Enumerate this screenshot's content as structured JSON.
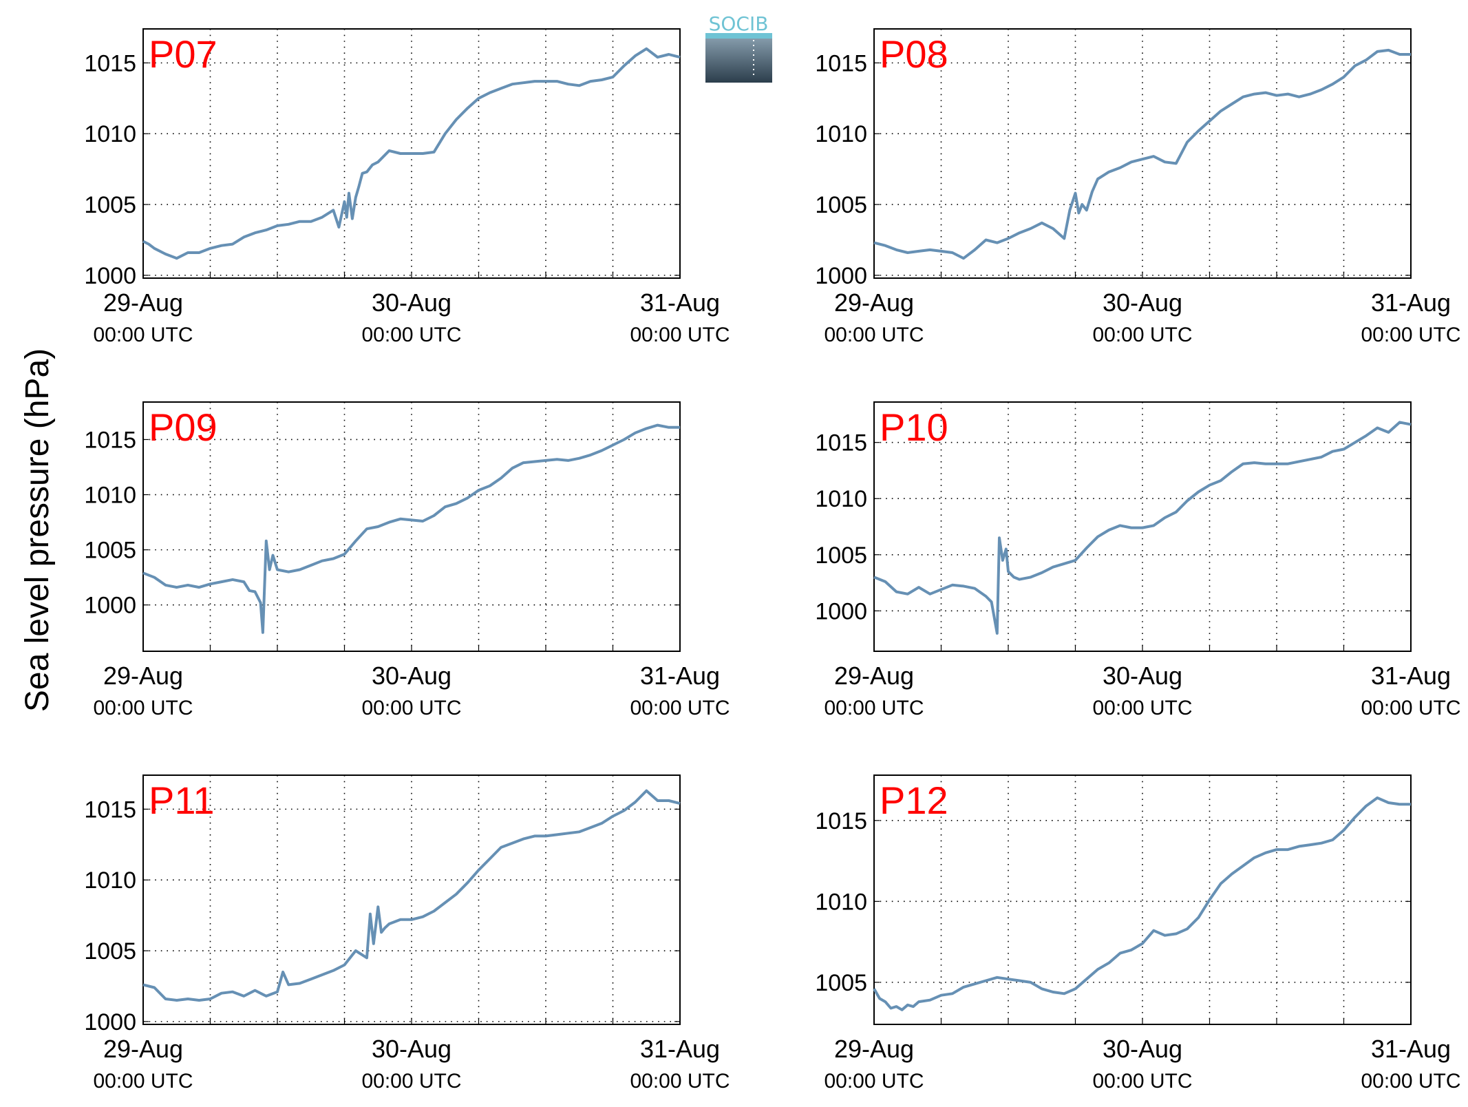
{
  "figure": {
    "ylabel": "Sea level pressure (hPa)",
    "logo_text": "SOCIB",
    "line_color": "#6690b4",
    "label_color": "#ff0000"
  },
  "chart_data": [
    {
      "type": "line",
      "title": "P07",
      "xlim": [
        0,
        48
      ],
      "ylim": [
        999.8,
        1017.4
      ],
      "yticks": [
        1000,
        1005,
        1010,
        1015
      ],
      "xticks": [
        0,
        24,
        48
      ],
      "xticklabels": [
        [
          "29-Aug",
          "00:00 UTC"
        ],
        [
          "30-Aug",
          "00:00 UTC"
        ],
        [
          "31-Aug",
          "00:00 UTC"
        ]
      ],
      "grid": true,
      "x": [
        0,
        0.5,
        1,
        2,
        3,
        4,
        5,
        6,
        7,
        8,
        9,
        10,
        11,
        12,
        13,
        14,
        15,
        16,
        17,
        17.5,
        18,
        18.2,
        18.4,
        18.7,
        19,
        19.3,
        19.6,
        20,
        20.5,
        21,
        22,
        23,
        24,
        25,
        26,
        27,
        28,
        29,
        30,
        31,
        32,
        33,
        34,
        35,
        36,
        37,
        38,
        39,
        40,
        41,
        42,
        43,
        44,
        45,
        46,
        47,
        47.5,
        48
      ],
      "y": [
        1002.4,
        1002.2,
        1001.9,
        1001.5,
        1001.2,
        1001.6,
        1001.6,
        1001.9,
        1002.1,
        1002.2,
        1002.7,
        1003,
        1003.2,
        1003.5,
        1003.6,
        1003.8,
        1003.8,
        1004.1,
        1004.6,
        1003.4,
        1005.2,
        1004.1,
        1005.8,
        1004.0,
        1005.5,
        1006.3,
        1007.2,
        1007.3,
        1007.8,
        1008.0,
        1008.8,
        1008.6,
        1008.6,
        1008.6,
        1008.7,
        1010.0,
        1011.0,
        1011.8,
        1012.5,
        1012.9,
        1013.2,
        1013.5,
        1013.6,
        1013.7,
        1013.7,
        1013.7,
        1013.5,
        1013.4,
        1013.7,
        1013.8,
        1014.0,
        1014.8,
        1015.5,
        1016.0,
        1015.4,
        1015.6,
        1015.5,
        1015.4
      ]
    },
    {
      "type": "line",
      "title": "P08",
      "xlim": [
        0,
        48
      ],
      "ylim": [
        999.8,
        1017.4
      ],
      "yticks": [
        1000,
        1005,
        1010,
        1015
      ],
      "xticks": [
        0,
        24,
        48
      ],
      "xticklabels": [
        [
          "29-Aug",
          "00:00 UTC"
        ],
        [
          "30-Aug",
          "00:00 UTC"
        ],
        [
          "31-Aug",
          "00:00 UTC"
        ]
      ],
      "grid": true,
      "x": [
        0,
        1,
        2,
        3,
        4,
        5,
        6,
        7,
        8,
        9,
        10,
        11,
        12,
        13,
        14,
        15,
        16,
        17,
        17.5,
        18,
        18.3,
        18.6,
        19,
        19.5,
        20,
        21,
        22,
        23,
        24,
        25,
        26,
        27,
        28,
        29,
        30,
        31,
        32,
        33,
        34,
        35,
        36,
        37,
        38,
        39,
        40,
        41,
        42,
        43,
        44,
        45,
        46,
        47,
        48
      ],
      "y": [
        1002.3,
        1002.1,
        1001.8,
        1001.6,
        1001.7,
        1001.8,
        1001.7,
        1001.6,
        1001.2,
        1001.8,
        1002.5,
        1002.3,
        1002.6,
        1003.0,
        1003.3,
        1003.7,
        1003.3,
        1002.6,
        1004.6,
        1005.8,
        1004.4,
        1005.0,
        1004.6,
        1005.9,
        1006.8,
        1007.3,
        1007.6,
        1008.0,
        1008.2,
        1008.4,
        1008.0,
        1007.9,
        1009.4,
        1010.2,
        1010.9,
        1011.6,
        1012.1,
        1012.6,
        1012.8,
        1012.9,
        1012.7,
        1012.8,
        1012.6,
        1012.8,
        1013.1,
        1013.5,
        1014.0,
        1014.8,
        1015.2,
        1015.8,
        1015.9,
        1015.6,
        1015.6
      ]
    },
    {
      "type": "line",
      "title": "P09",
      "xlim": [
        0,
        48
      ],
      "ylim": [
        995.8,
        1018.4
      ],
      "yticks": [
        1000,
        1005,
        1010,
        1015
      ],
      "xticks": [
        0,
        24,
        48
      ],
      "xticklabels": [
        [
          "29-Aug",
          "00:00 UTC"
        ],
        [
          "30-Aug",
          "00:00 UTC"
        ],
        [
          "31-Aug",
          "00:00 UTC"
        ]
      ],
      "grid": true,
      "x": [
        0,
        1,
        2,
        3,
        4,
        5,
        6,
        7,
        8,
        9,
        9.5,
        10,
        10.5,
        10.7,
        11,
        11.3,
        11.6,
        12,
        13,
        14,
        15,
        16,
        17,
        18,
        19,
        20,
        21,
        22,
        23,
        24,
        25,
        26,
        27,
        28,
        29,
        30,
        31,
        32,
        33,
        34,
        35,
        36,
        37,
        38,
        39,
        40,
        41,
        42,
        43,
        44,
        45,
        46,
        47,
        48
      ],
      "y": [
        1002.9,
        1002.5,
        1001.8,
        1001.6,
        1001.8,
        1001.6,
        1001.9,
        1002.1,
        1002.3,
        1002.1,
        1001.3,
        1001.2,
        1000.2,
        997.5,
        1005.8,
        1003.2,
        1004.5,
        1003.2,
        1003.0,
        1003.2,
        1003.6,
        1004.0,
        1004.2,
        1004.6,
        1005.8,
        1006.9,
        1007.1,
        1007.5,
        1007.8,
        1007.7,
        1007.6,
        1008.1,
        1008.9,
        1009.2,
        1009.7,
        1010.4,
        1010.8,
        1011.5,
        1012.4,
        1012.9,
        1013.0,
        1013.1,
        1013.2,
        1013.1,
        1013.3,
        1013.6,
        1014.0,
        1014.5,
        1015.0,
        1015.6,
        1016.0,
        1016.3,
        1016.1,
        1016.1
      ]
    },
    {
      "type": "line",
      "title": "P10",
      "xlim": [
        0,
        48
      ],
      "ylim": [
        996.4,
        1018.6
      ],
      "yticks": [
        1000,
        1005,
        1010,
        1015
      ],
      "xticks": [
        0,
        24,
        48
      ],
      "xticklabels": [
        [
          "29-Aug",
          "00:00 UTC"
        ],
        [
          "30-Aug",
          "00:00 UTC"
        ],
        [
          "31-Aug",
          "00:00 UTC"
        ]
      ],
      "grid": true,
      "x": [
        0,
        1,
        2,
        3,
        4,
        5,
        6,
        7,
        8,
        9,
        10,
        10.5,
        11,
        11.2,
        11.5,
        11.8,
        12,
        12.5,
        13,
        14,
        15,
        16,
        17,
        18,
        19,
        20,
        21,
        22,
        23,
        24,
        25,
        26,
        27,
        28,
        29,
        30,
        31,
        32,
        33,
        34,
        35,
        36,
        37,
        38,
        39,
        40,
        41,
        42,
        43,
        44,
        45,
        46,
        47,
        48
      ],
      "y": [
        1003.0,
        1002.6,
        1001.7,
        1001.5,
        1002.1,
        1001.5,
        1001.9,
        1002.3,
        1002.2,
        1002.0,
        1001.3,
        1000.8,
        998.0,
        1006.5,
        1004.5,
        1005.5,
        1003.5,
        1003.0,
        1002.8,
        1003.0,
        1003.4,
        1003.9,
        1004.2,
        1004.5,
        1005.6,
        1006.6,
        1007.2,
        1007.6,
        1007.4,
        1007.4,
        1007.6,
        1008.3,
        1008.8,
        1009.8,
        1010.6,
        1011.2,
        1011.6,
        1012.4,
        1013.1,
        1013.2,
        1013.1,
        1013.1,
        1013.1,
        1013.3,
        1013.5,
        1013.7,
        1014.2,
        1014.4,
        1015.0,
        1015.6,
        1016.3,
        1015.9,
        1016.8,
        1016.6
      ]
    },
    {
      "type": "line",
      "title": "P11",
      "xlim": [
        0,
        48
      ],
      "ylim": [
        999.8,
        1017.4
      ],
      "yticks": [
        1000,
        1005,
        1010,
        1015
      ],
      "xticks": [
        0,
        24,
        48
      ],
      "xticklabels": [
        [
          "29-Aug",
          "00:00 UTC"
        ],
        [
          "30-Aug",
          "00:00 UTC"
        ],
        [
          "31-Aug",
          "00:00 UTC"
        ]
      ],
      "grid": true,
      "x": [
        0,
        1,
        2,
        3,
        4,
        5,
        6,
        7,
        8,
        9,
        10,
        11,
        12,
        12.5,
        13,
        14,
        15,
        16,
        17,
        18,
        19,
        20,
        20.3,
        20.6,
        21,
        21.3,
        21.6,
        22,
        23,
        24,
        25,
        26,
        27,
        28,
        29,
        30,
        31,
        32,
        33,
        34,
        35,
        36,
        37,
        38,
        39,
        40,
        41,
        42,
        43,
        44,
        45,
        46,
        47,
        48
      ],
      "y": [
        1002.6,
        1002.4,
        1001.6,
        1001.5,
        1001.6,
        1001.5,
        1001.6,
        1002.0,
        1002.1,
        1001.8,
        1002.2,
        1001.8,
        1002.1,
        1003.5,
        1002.6,
        1002.7,
        1003.0,
        1003.3,
        1003.6,
        1004.0,
        1005.0,
        1004.5,
        1007.6,
        1005.5,
        1008.1,
        1006.3,
        1006.6,
        1006.9,
        1007.2,
        1007.2,
        1007.4,
        1007.8,
        1008.4,
        1009.0,
        1009.8,
        1010.7,
        1011.5,
        1012.3,
        1012.6,
        1012.9,
        1013.1,
        1013.1,
        1013.2,
        1013.3,
        1013.4,
        1013.7,
        1014.0,
        1014.5,
        1014.9,
        1015.5,
        1016.3,
        1015.6,
        1015.6,
        1015.4
      ]
    },
    {
      "type": "line",
      "title": "P12",
      "xlim": [
        0,
        48
      ],
      "ylim": [
        1002.4,
        1017.8
      ],
      "yticks": [
        1005,
        1010,
        1015
      ],
      "xticks": [
        0,
        24,
        48
      ],
      "xticklabels": [
        [
          "29-Aug",
          "00:00 UTC"
        ],
        [
          "30-Aug",
          "00:00 UTC"
        ],
        [
          "31-Aug",
          "00:00 UTC"
        ]
      ],
      "grid": true,
      "x": [
        0,
        0.5,
        1,
        1.5,
        2,
        2.5,
        3,
        3.5,
        4,
        5,
        6,
        7,
        8,
        9,
        10,
        11,
        12,
        13,
        14,
        15,
        16,
        17,
        18,
        19,
        20,
        21,
        22,
        23,
        24,
        25,
        26,
        27,
        28,
        29,
        30,
        31,
        32,
        33,
        34,
        35,
        36,
        37,
        38,
        39,
        40,
        41,
        42,
        43,
        44,
        45,
        46,
        47,
        48
      ],
      "y": [
        1004.6,
        1004.0,
        1003.8,
        1003.4,
        1003.5,
        1003.3,
        1003.6,
        1003.5,
        1003.8,
        1003.9,
        1004.2,
        1004.3,
        1004.7,
        1004.9,
        1005.1,
        1005.3,
        1005.2,
        1005.1,
        1005.0,
        1004.6,
        1004.4,
        1004.3,
        1004.6,
        1005.2,
        1005.8,
        1006.2,
        1006.8,
        1007.0,
        1007.4,
        1008.2,
        1007.9,
        1008.0,
        1008.3,
        1009.0,
        1010.1,
        1011.1,
        1011.7,
        1012.2,
        1012.7,
        1013.0,
        1013.2,
        1013.2,
        1013.4,
        1013.5,
        1013.6,
        1013.8,
        1014.4,
        1015.2,
        1015.9,
        1016.4,
        1016.1,
        1016.0,
        1016.0
      ]
    }
  ]
}
